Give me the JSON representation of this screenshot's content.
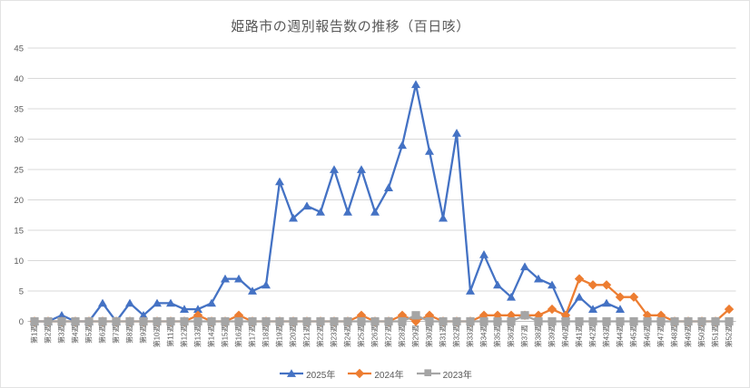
{
  "title": "姫路市の週別報告数の推移（百日咳）",
  "colors": {
    "series_2025": "#4472C4",
    "series_2024": "#ED7D31",
    "series_2023": "#A5A5A5",
    "text": "#595959",
    "grid": "#D9D9D9",
    "axis": "#BFBFBF"
  },
  "legend": {
    "items": [
      {
        "label": "2025年",
        "marker": "triangle",
        "color": "#4472C4"
      },
      {
        "label": "2024年",
        "marker": "diamond",
        "color": "#ED7D31"
      },
      {
        "label": "2023年",
        "marker": "square",
        "color": "#A5A5A5"
      }
    ]
  },
  "chart_data": {
    "type": "line",
    "title": "姫路市の週別報告数の推移（百日咳）",
    "xlabel": "",
    "ylabel": "",
    "ylim": [
      0,
      45
    ],
    "grid": true,
    "legend_position": "bottom-center",
    "y_ticks": [
      "0",
      "5",
      "10",
      "15",
      "20",
      "25",
      "30",
      "35",
      "40",
      "45"
    ],
    "x_labels": [
      "第1週",
      "第2週",
      "第3週",
      "第4週",
      "第5週",
      "第6週",
      "第7週",
      "第8週",
      "第9週",
      "第10週",
      "第11週",
      "第12週",
      "第13週",
      "第14週",
      "第15週",
      "第16週",
      "第17週",
      "第18週",
      "第19週",
      "第20週",
      "第21週",
      "第22週",
      "第23週",
      "第24週",
      "第25週",
      "第26週",
      "第27週",
      "第28週",
      "第29週",
      "第30週",
      "第31週",
      "第32週",
      "第33週",
      "第34週",
      "第35週",
      "第36週",
      "第37週",
      "第38週",
      "第39週",
      "第40週",
      "第41週",
      "第42週",
      "第43週",
      "第44週",
      "第45週",
      "第46週",
      "第47週",
      "第48週",
      "第49週",
      "第50週",
      "第51週",
      "第52週"
    ],
    "series": [
      {
        "name": "2025年",
        "color": "#4472C4",
        "marker": "triangle",
        "values": [
          0,
          0,
          1,
          0,
          0,
          3,
          0,
          3,
          1,
          3,
          3,
          2,
          2,
          3,
          7,
          7,
          5,
          6,
          23,
          17,
          19,
          18,
          25,
          18,
          25,
          18,
          22,
          29,
          39,
          28,
          17,
          31,
          5,
          11,
          6,
          4,
          9,
          7,
          6,
          1,
          4,
          2,
          3,
          2,
          null,
          null,
          null,
          null,
          null,
          null,
          null,
          null
        ]
      },
      {
        "name": "2024年",
        "color": "#ED7D31",
        "marker": "diamond",
        "values": [
          0,
          0,
          0,
          0,
          0,
          0,
          0,
          0,
          0,
          0,
          0,
          0,
          1,
          0,
          0,
          1,
          0,
          0,
          0,
          0,
          0,
          0,
          0,
          0,
          1,
          0,
          0,
          1,
          0,
          1,
          0,
          0,
          0,
          1,
          1,
          1,
          1,
          1,
          2,
          1,
          7,
          6,
          6,
          4,
          4,
          1,
          1,
          0,
          0,
          0,
          0,
          2
        ]
      },
      {
        "name": "2023年",
        "color": "#A5A5A5",
        "marker": "square",
        "values": [
          0,
          0,
          0,
          0,
          0,
          0,
          0,
          0,
          0,
          0,
          0,
          0,
          0,
          0,
          0,
          0,
          0,
          0,
          0,
          0,
          0,
          0,
          0,
          0,
          0,
          0,
          0,
          0,
          1,
          0,
          0,
          0,
          0,
          0,
          0,
          0,
          1,
          0,
          0,
          0,
          0,
          0,
          0,
          0,
          0,
          0,
          0,
          0,
          0,
          0,
          0,
          0
        ]
      }
    ]
  }
}
